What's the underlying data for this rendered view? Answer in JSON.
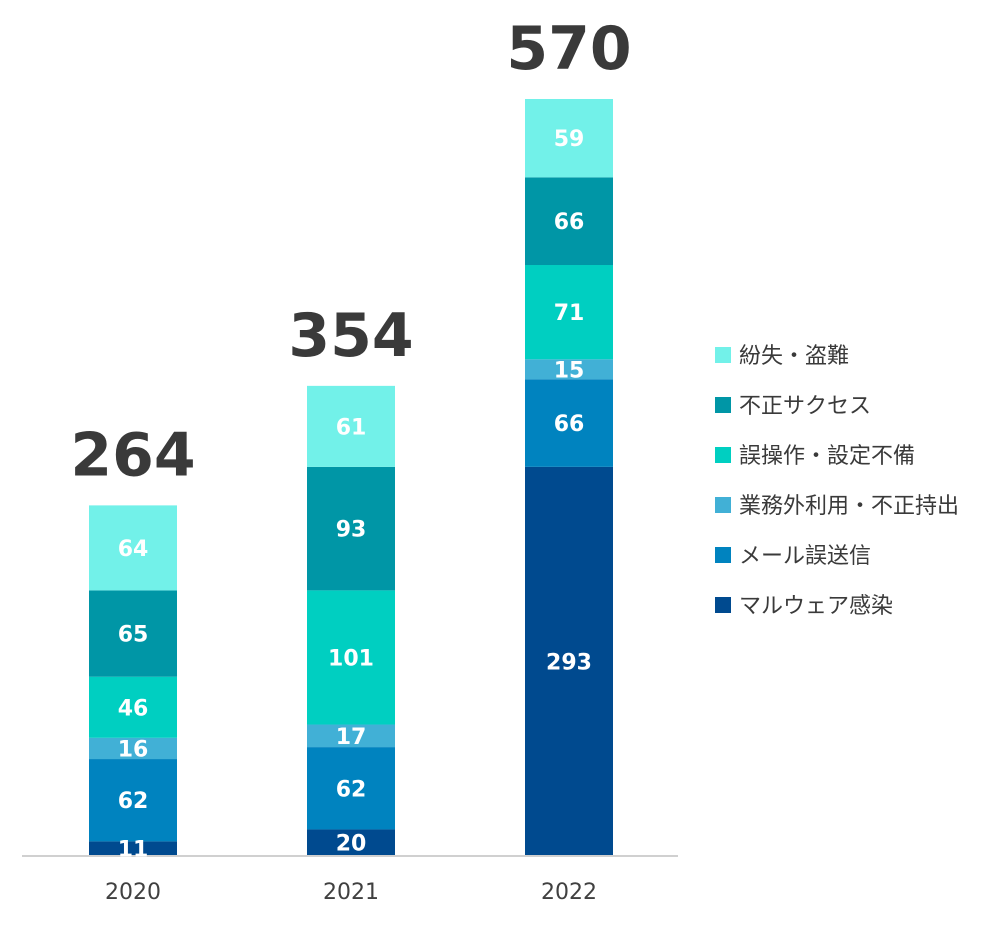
{
  "chart_data": {
    "type": "bar",
    "stacked": true,
    "categories": [
      "2020",
      "2021",
      "2022"
    ],
    "totals": [
      "264",
      "354",
      "570"
    ],
    "series": [
      {
        "name": "マルウェア感染",
        "color": "#004a8f",
        "values": [
          11,
          20,
          293
        ]
      },
      {
        "name": "メール誤送信",
        "color": "#0083bf",
        "values": [
          62,
          62,
          66
        ]
      },
      {
        "name": "業務外利用・不正持出",
        "color": "#41b0d6",
        "values": [
          16,
          17,
          15
        ]
      },
      {
        "name": "誤操作・設定不備",
        "color": "#00cfc1",
        "values": [
          46,
          101,
          71
        ]
      },
      {
        "name": "不正サクセス",
        "color": "#0096a6",
        "values": [
          65,
          93,
          66
        ]
      },
      {
        "name": "紛失・盗難",
        "color": "#72f1e9",
        "values": [
          64,
          61,
          59
        ]
      }
    ],
    "legend_order": [
      "紛失・盗難",
      "不正サクセス",
      "誤操作・設定不備",
      "業務外利用・不正持出",
      "メール誤送信",
      "マルウェア感染"
    ],
    "legend_position": "right",
    "grid": false,
    "ylim": [
      0,
      570
    ]
  }
}
